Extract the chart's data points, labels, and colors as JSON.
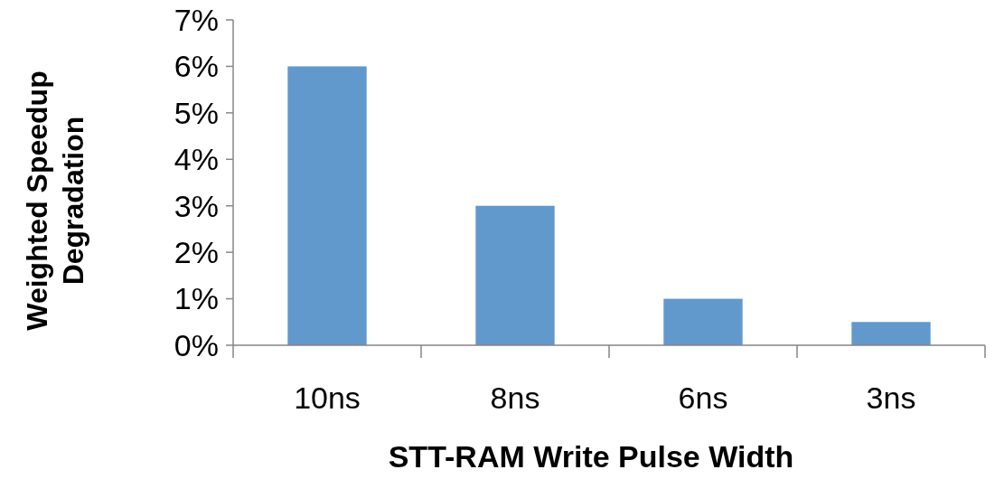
{
  "chart_data": {
    "type": "bar",
    "xlabel": "STT-RAM Write Pulse Width",
    "ylabel": "Weighted Speedup\nDegradation",
    "categories": [
      "10ns",
      "8ns",
      "6ns",
      "3ns"
    ],
    "values": [
      6,
      3,
      1,
      0.5
    ],
    "color": "#6199cd",
    "ylim": [
      0,
      7
    ],
    "yticks": [
      {
        "value": 0,
        "label": "0%"
      },
      {
        "value": 1,
        "label": "1%"
      },
      {
        "value": 2,
        "label": "2%"
      },
      {
        "value": 3,
        "label": "3%"
      },
      {
        "value": 4,
        "label": "4%"
      },
      {
        "value": 5,
        "label": "5%"
      },
      {
        "value": 6,
        "label": "6%"
      },
      {
        "value": 7,
        "label": "7%"
      }
    ]
  }
}
